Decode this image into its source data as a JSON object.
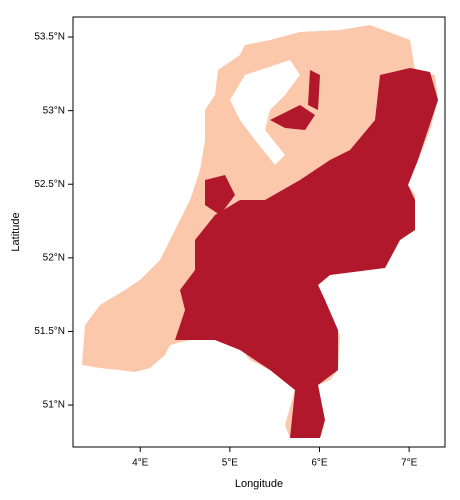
{
  "chart_data": {
    "type": "map",
    "xlabel": "Longitude",
    "ylabel": "Latitude",
    "xlim": [
      3.25,
      7.4
    ],
    "ylim": [
      50.715,
      53.636
    ],
    "xticks": [
      {
        "value": 4,
        "label": "4°E"
      },
      {
        "value": 5,
        "label": "5°E"
      },
      {
        "value": 6,
        "label": "6°E"
      },
      {
        "value": 7,
        "label": "7°E"
      }
    ],
    "yticks": [
      {
        "value": 51,
        "label": "51°N"
      },
      {
        "value": 51.5,
        "label": "51.5°N"
      },
      {
        "value": 52,
        "label": "52°N"
      },
      {
        "value": 52.5,
        "label": "52.5°N"
      },
      {
        "value": 53,
        "label": "53°N"
      },
      {
        "value": 53.5,
        "label": "53.5°N"
      }
    ],
    "colors": [
      "#fbc8ac",
      "#b2182b"
    ]
  }
}
